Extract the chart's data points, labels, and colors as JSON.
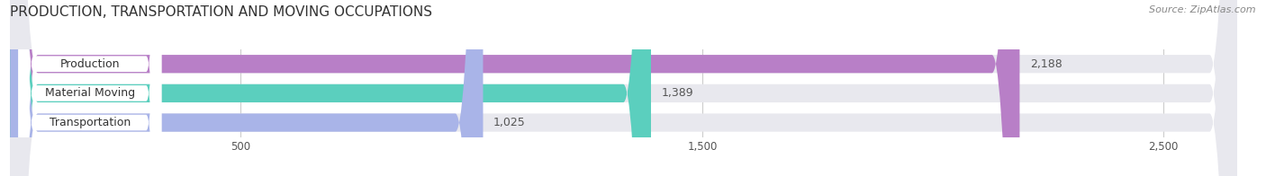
{
  "title": "PRODUCTION, TRANSPORTATION AND MOVING OCCUPATIONS",
  "source": "Source: ZipAtlas.com",
  "categories": [
    "Production",
    "Material Moving",
    "Transportation"
  ],
  "values": [
    2188,
    1389,
    1025
  ],
  "bar_colors": [
    "#b87fc7",
    "#5bcfbe",
    "#a9b4e8"
  ],
  "background_color": "#ffffff",
  "bar_background_color": "#e8e8ee",
  "label_bg_color": "#ffffff",
  "xlim": [
    0,
    2700
  ],
  "xticks": [
    500,
    1500,
    2500
  ],
  "title_fontsize": 11,
  "label_fontsize": 9,
  "value_fontsize": 9,
  "bar_height": 0.62
}
